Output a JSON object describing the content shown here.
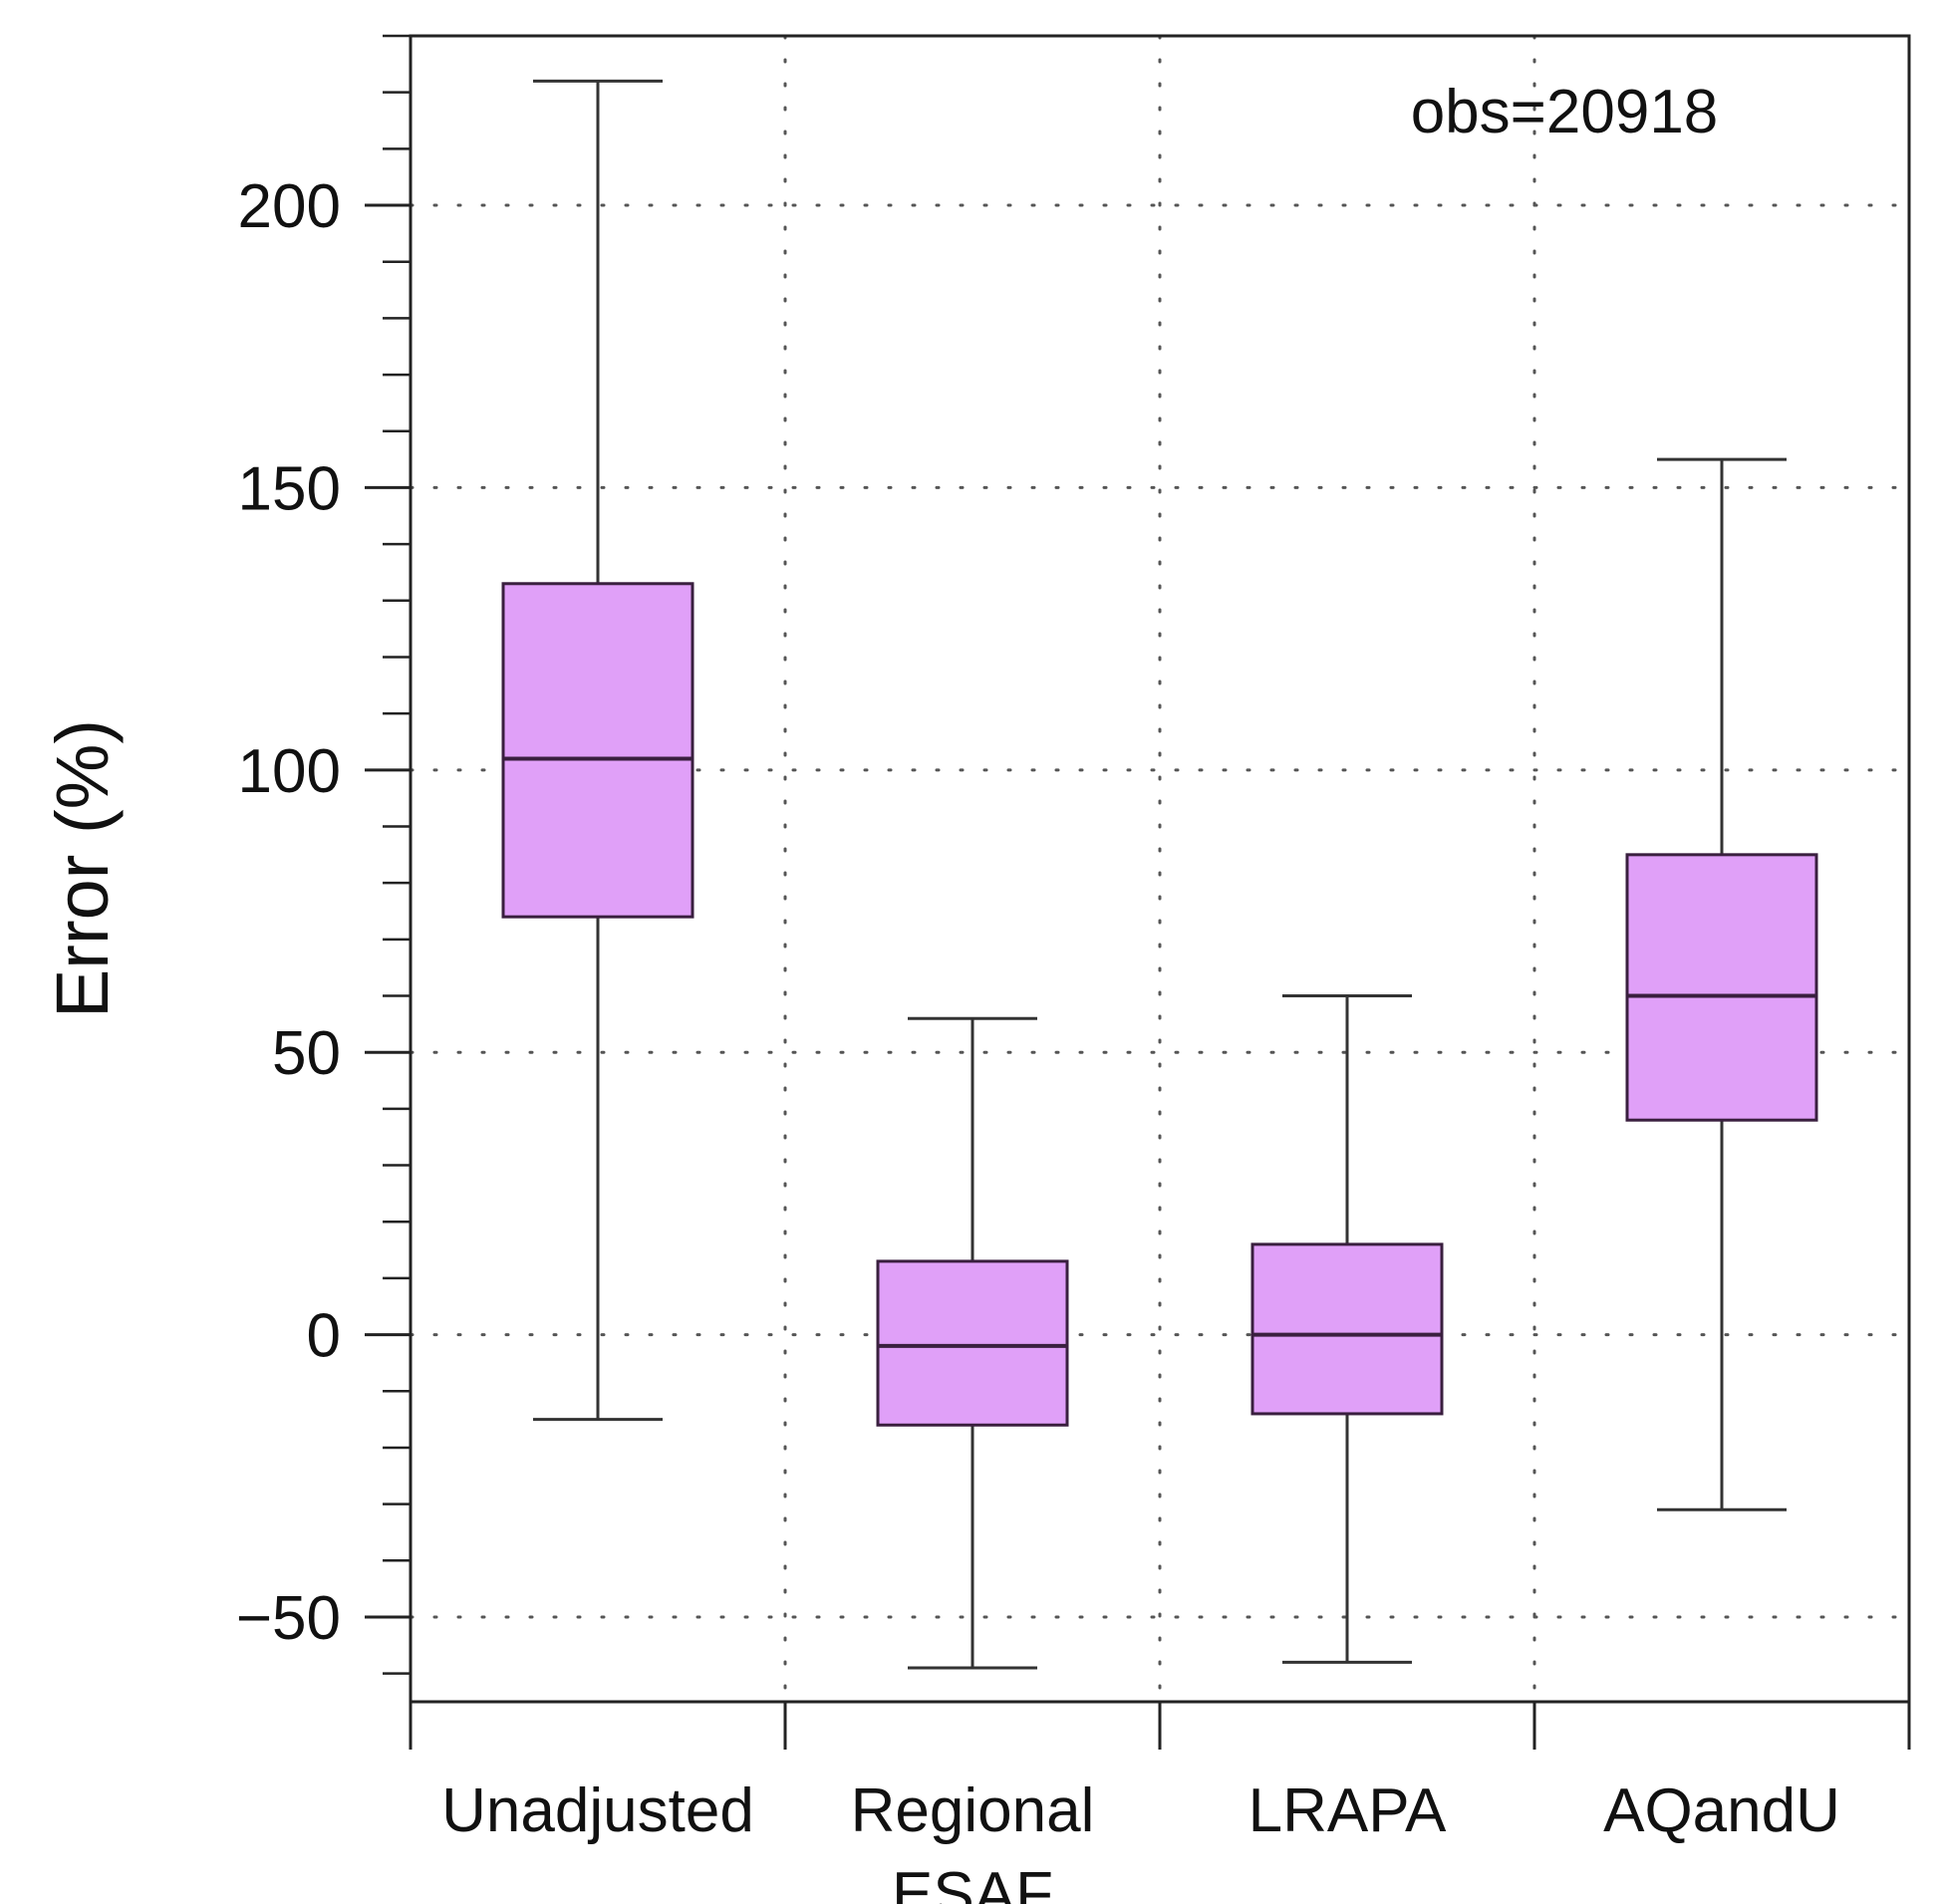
{
  "chart_data": {
    "type": "box",
    "title": "",
    "ylabel": "Error (%)",
    "xlabel": "",
    "annotation": "obs=20918",
    "ylim": [
      -65,
      230
    ],
    "yticks": [
      -50,
      0,
      50,
      100,
      150,
      200
    ],
    "ytick_labels": [
      "−50",
      "0",
      "50",
      "100",
      "150",
      "200"
    ],
    "y_minor_step": 10,
    "grid": "dotted",
    "fill_color": "#e0a0f8",
    "edge_color": "#3a1f3f",
    "categories": [
      {
        "label_lines": [
          "Unadjusted"
        ],
        "whisker_low": -15,
        "q1": 74,
        "median": 102,
        "q3": 133,
        "whisker_high": 222
      },
      {
        "label_lines": [
          "Regional",
          "ESAF"
        ],
        "whisker_low": -59,
        "q1": -16,
        "median": -2,
        "q3": 13,
        "whisker_high": 56
      },
      {
        "label_lines": [
          "LRAPA"
        ],
        "whisker_low": -58,
        "q1": -14,
        "median": 0,
        "q3": 16,
        "whisker_high": 60
      },
      {
        "label_lines": [
          "AQandU"
        ],
        "whisker_low": -31,
        "q1": 38,
        "median": 60,
        "q3": 85,
        "whisker_high": 155
      }
    ]
  }
}
